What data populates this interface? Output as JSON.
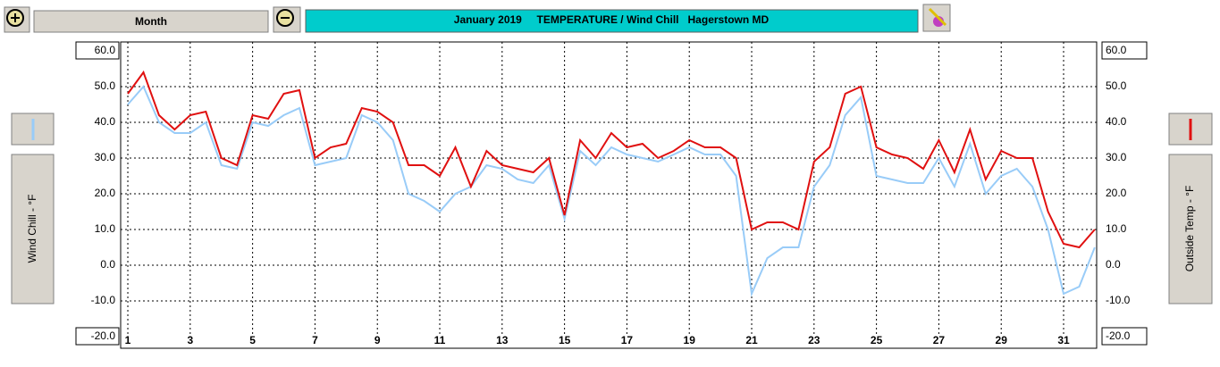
{
  "toolbar": {
    "period": "Month"
  },
  "chart_data": {
    "type": "line",
    "title": "January 2019     TEMPERATURE / Wind Chill   Hagerstown MD",
    "ylabel": "Wind Chill - °F",
    "y2label": "Outside Temp - °F",
    "xlim": [
      0.77,
      32.06
    ],
    "xticks": [
      1,
      3,
      5,
      7,
      9,
      11,
      13,
      15,
      17,
      19,
      21,
      23,
      25,
      27,
      29,
      31
    ],
    "ylim": [
      -20,
      60
    ],
    "yticks": [
      {
        "value": 60,
        "label": "60.0"
      },
      {
        "value": 50,
        "label": "50.0"
      },
      {
        "value": 40,
        "label": "40.0"
      },
      {
        "value": 30,
        "label": "30.0"
      },
      {
        "value": 20,
        "label": "20.0"
      },
      {
        "value": 10,
        "label": "10.0"
      },
      {
        "value": 0,
        "label": "0.0"
      },
      {
        "value": -10,
        "label": "-10.0"
      },
      {
        "value": -20,
        "label": "-20.0"
      }
    ],
    "y2lim": [
      -20,
      60
    ],
    "y2ticks": [
      {
        "value": 60,
        "label": "60.0"
      },
      {
        "value": 50,
        "label": "50.0"
      },
      {
        "value": 40,
        "label": "40.0"
      },
      {
        "value": 30,
        "label": "30.0"
      },
      {
        "value": 20,
        "label": "20.0"
      },
      {
        "value": 10,
        "label": "10.0"
      },
      {
        "value": 0,
        "label": "0.0"
      },
      {
        "value": -10,
        "label": "-10.0"
      },
      {
        "value": -20,
        "label": "-20.0"
      }
    ],
    "grid": true,
    "x": [
      1,
      1.5,
      2,
      2.5,
      3,
      3.5,
      4,
      4.5,
      5,
      5.5,
      6,
      6.5,
      7,
      7.5,
      8,
      8.5,
      9,
      9.5,
      10,
      10.5,
      11,
      11.5,
      12,
      12.5,
      13,
      13.5,
      14,
      14.5,
      15,
      15.5,
      16,
      16.5,
      17,
      17.5,
      18,
      18.5,
      19,
      19.5,
      20,
      20.5,
      21,
      21.5,
      22,
      22.5,
      23,
      23.5,
      24,
      24.5,
      25,
      25.5,
      26,
      26.5,
      27,
      27.5,
      28,
      28.5,
      29,
      29.5,
      30,
      30.5,
      31,
      31.5,
      32
    ],
    "series": [
      {
        "color": "#99ccf8",
        "values": [
          45,
          50,
          40,
          37,
          37,
          40,
          28,
          27,
          40,
          39,
          42,
          44,
          28,
          29,
          30,
          42,
          40,
          35,
          20,
          18,
          15,
          20,
          22,
          28,
          27,
          24,
          23,
          28,
          13,
          32,
          28,
          33,
          31,
          30,
          29,
          31,
          33,
          31,
          31,
          25,
          -8,
          2,
          5,
          5,
          22,
          28,
          42,
          47,
          25,
          24,
          23,
          23,
          30,
          22,
          34,
          20,
          25,
          27,
          22,
          10,
          -8,
          -6,
          5
        ]
      },
      {
        "color": "#e01010",
        "axis": "y2",
        "values": [
          48,
          54,
          42,
          38,
          42,
          43,
          30,
          28,
          42,
          41,
          48,
          49,
          30,
          33,
          34,
          44,
          43,
          40,
          28,
          28,
          25,
          33,
          22,
          32,
          28,
          27,
          26,
          30,
          14,
          35,
          30,
          37,
          33,
          34,
          30,
          32,
          35,
          33,
          33,
          30,
          10,
          12,
          12,
          10,
          29,
          33,
          48,
          50,
          33,
          31,
          30,
          27,
          35,
          26,
          38,
          24,
          32,
          30,
          30,
          15,
          6,
          5,
          10
        ]
      }
    ]
  }
}
